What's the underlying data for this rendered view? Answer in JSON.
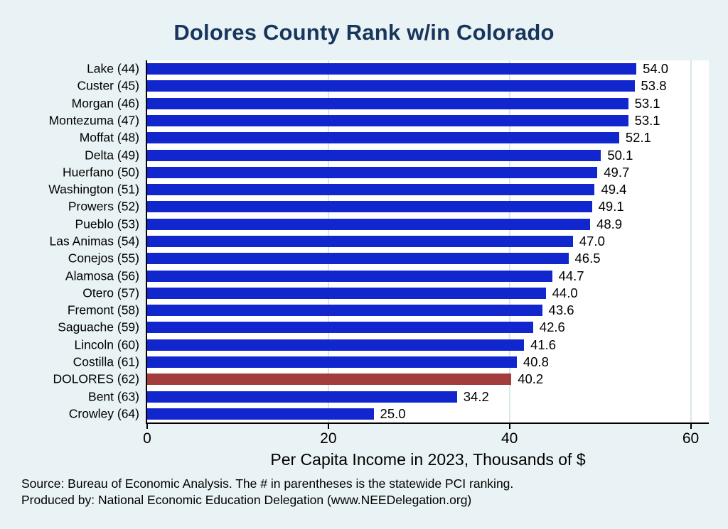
{
  "chart_data": {
    "type": "bar",
    "orientation": "horizontal",
    "title": "Dolores County Rank w/in Colorado",
    "xlabel": "Per Capita Income in 2023, Thousands of $",
    "categories": [
      "Lake (44)",
      "Custer (45)",
      "Morgan (46)",
      "Montezuma (47)",
      "Moffat (48)",
      "Delta (49)",
      "Huerfano (50)",
      "Washington (51)",
      "Prowers (52)",
      "Pueblo (53)",
      "Las Animas (54)",
      "Conejos (55)",
      "Alamosa (56)",
      "Otero (57)",
      "Fremont (58)",
      "Saguache (59)",
      "Lincoln (60)",
      "Costilla (61)",
      "DOLORES (62)",
      "Bent (63)",
      "Crowley (64)"
    ],
    "values": [
      54.0,
      53.8,
      53.1,
      53.1,
      52.1,
      50.1,
      49.7,
      49.4,
      49.1,
      48.9,
      47.0,
      46.5,
      44.7,
      44.0,
      43.6,
      42.6,
      41.6,
      40.8,
      40.2,
      34.2,
      25.0
    ],
    "value_labels": [
      "54.0",
      "53.8",
      "53.1",
      "53.1",
      "52.1",
      "50.1",
      "49.7",
      "49.4",
      "49.1",
      "48.9",
      "47.0",
      "46.5",
      "44.7",
      "44.0",
      "43.6",
      "42.6",
      "41.6",
      "40.8",
      "40.2",
      "34.2",
      "25.0"
    ],
    "xlim": [
      0,
      62
    ],
    "xticks": [
      0,
      20,
      40,
      60
    ],
    "grid": true,
    "legend": "none",
    "highlight_index": 18,
    "colors": {
      "bar": "#1126cc",
      "highlight": "#a33d3d",
      "title": "#17365d",
      "background": "#e9f2f4",
      "plot_background": "#ffffff",
      "gridline": "#d6e8ea",
      "axis": "#000000"
    }
  },
  "notes": {
    "source": "Source: Bureau of Economic Analysis. The # in parentheses is the statewide PCI ranking.",
    "produced_by": "Produced by: National Economic Education Delegation (www.NEEDelegation.org)"
  }
}
